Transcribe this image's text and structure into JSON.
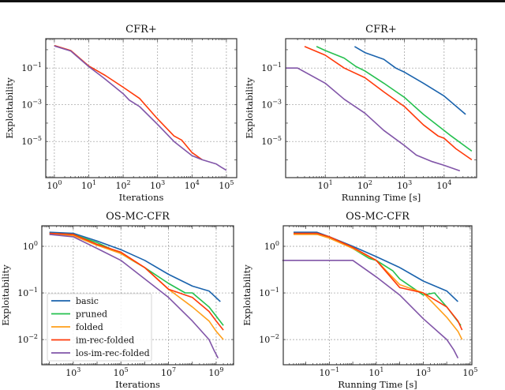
{
  "colors": {
    "basic": "#1a63ad",
    "pruned": "#25c04f",
    "folded": "#ff9f1a",
    "im-rec-folded": "#ff3a0a",
    "los-im-rec-folded": "#8155a8"
  },
  "chart_data": [
    {
      "type": "line",
      "title": "CFR+",
      "xlabel": "Iterations",
      "ylabel": "Exploitability",
      "xscale": "log",
      "yscale": "log",
      "xlim_log10": [
        -0.25,
        5.3
      ],
      "ylim_log10": [
        -6.97,
        0.6
      ],
      "xticks_log10": [
        0,
        1,
        2,
        3,
        4,
        5
      ],
      "yticks_log10": [
        -1,
        -3,
        -5
      ],
      "grid": true,
      "series": [
        {
          "name": "im-rec-folded",
          "x": [
            1,
            3,
            10,
            30,
            100,
            300,
            1000,
            3000,
            5000,
            10000,
            20000
          ],
          "y": [
            1.7,
            0.9,
            0.13,
            0.04,
            0.009,
            0.0022,
            0.00017,
            2e-05,
            1.2e-05,
            2.5e-06,
            1e-06
          ]
        },
        {
          "name": "los-im-rec-folded",
          "x": [
            1,
            3,
            10,
            30,
            100,
            150,
            300,
            1000,
            3000,
            10000,
            20000,
            50000,
            70000,
            100000
          ],
          "y": [
            1.6,
            0.85,
            0.12,
            0.025,
            0.004,
            0.0018,
            0.0008,
            8.5e-05,
            1e-05,
            1.7e-06,
            1e-06,
            6e-07,
            4e-07,
            2.7e-07
          ]
        }
      ]
    },
    {
      "type": "line",
      "title": "CFR+",
      "xlabel": "Running Time [s]",
      "ylabel": "Exploitability",
      "xscale": "log",
      "yscale": "log",
      "xlim_log10": [
        0,
        4.82
      ],
      "ylim_log10": [
        -6.97,
        0.6
      ],
      "xticks_log10": [
        1,
        2,
        3,
        4
      ],
      "yticks_log10": [
        -1,
        -3,
        -5
      ],
      "grid": true,
      "series": [
        {
          "name": "basic",
          "x": [
            55,
            100,
            300,
            600,
            1000,
            3000,
            10000,
            35000
          ],
          "y": [
            1.5,
            0.7,
            0.3,
            0.1,
            0.06,
            0.015,
            0.003,
            0.0003
          ]
        },
        {
          "name": "pruned",
          "x": [
            6,
            10,
            30,
            60,
            100,
            300,
            1000,
            3000,
            10000,
            15000,
            50000
          ],
          "y": [
            1.5,
            0.9,
            0.35,
            0.12,
            0.07,
            0.015,
            0.0025,
            0.0003,
            4e-05,
            2e-05,
            3e-06
          ]
        },
        {
          "name": "im-rec-folded",
          "x": [
            3,
            10,
            30,
            100,
            300,
            1000,
            3000,
            7000,
            10000,
            20000,
            50000
          ],
          "y": [
            1.5,
            0.5,
            0.1,
            0.03,
            0.005,
            0.0008,
            8e-05,
            2e-05,
            1.5e-05,
            4e-06,
            1e-06
          ]
        },
        {
          "name": "los-im-rec-folded",
          "x": [
            1,
            2,
            10,
            30,
            100,
            300,
            1000,
            2000,
            5000,
            10000,
            25000
          ],
          "y": [
            0.1,
            0.1,
            0.015,
            0.002,
            0.00035,
            4e-05,
            6e-06,
            1.8e-06,
            8e-07,
            5e-07,
            2.5e-07
          ]
        }
      ]
    },
    {
      "type": "line",
      "title": "OS-MC-CFR",
      "xlabel": "Iterations",
      "ylabel": "Exploitability",
      "xscale": "log",
      "yscale": "log",
      "xlim_log10": [
        1.68,
        9.73
      ],
      "ylim_log10": [
        -2.54,
        0.44
      ],
      "xticks_log10": [
        3,
        5,
        7,
        9
      ],
      "yticks_log10": [
        0,
        -1,
        -2
      ],
      "grid": true,
      "legend": "lower-left",
      "series": [
        {
          "name": "basic",
          "x": [
            100,
            1000,
            10000,
            100000,
            1000000,
            10000000,
            100000000,
            500000000,
            1500000000
          ],
          "y": [
            2.0,
            1.9,
            1.3,
            0.85,
            0.5,
            0.25,
            0.14,
            0.11,
            0.065
          ]
        },
        {
          "name": "pruned",
          "x": [
            100,
            1000,
            10000,
            100000,
            300000,
            1000000,
            10000000,
            50000000,
            100000000,
            500000000,
            2000000000
          ],
          "y": [
            1.9,
            1.8,
            1.2,
            0.7,
            0.5,
            0.35,
            0.16,
            0.1,
            0.1,
            0.05,
            0.02
          ]
        },
        {
          "name": "folded",
          "x": [
            100,
            1000,
            10000,
            100000,
            1000000,
            10000000,
            100000000,
            500000000,
            1000000000,
            2000000000
          ],
          "y": [
            1.8,
            1.7,
            1.05,
            0.7,
            0.35,
            0.12,
            0.05,
            0.025,
            0.015,
            0.01
          ]
        },
        {
          "name": "im-rec-folded",
          "x": [
            100,
            1000,
            10000,
            100000,
            1000000,
            10000000,
            100000000,
            500000000,
            1000000000,
            2000000000
          ],
          "y": [
            1.9,
            1.8,
            1.1,
            0.75,
            0.35,
            0.12,
            0.08,
            0.04,
            0.025,
            0.016
          ]
        },
        {
          "name": "los-im-rec-folded",
          "x": [
            100,
            1000,
            10000,
            100000,
            1000000,
            10000000,
            100000000,
            500000000,
            800000000,
            1200000000
          ],
          "y": [
            1.8,
            1.6,
            0.9,
            0.5,
            0.2,
            0.08,
            0.025,
            0.01,
            0.006,
            0.004
          ]
        }
      ]
    },
    {
      "type": "line",
      "title": "OS-MC-CFR",
      "xlabel": "Running Time [s]",
      "ylabel": "Exploitability",
      "xscale": "log",
      "yscale": "log",
      "xlim_log10": [
        -2.96,
        5.07
      ],
      "ylim_log10": [
        -2.54,
        0.44
      ],
      "xticks_log10": [
        -1,
        1,
        3,
        5
      ],
      "yticks_log10": [
        0,
        -1,
        -2
      ],
      "grid": true,
      "series": [
        {
          "name": "basic",
          "x": [
            0.003,
            0.03,
            0.1,
            1,
            10,
            100,
            1000,
            10000,
            30000
          ],
          "y": [
            2.0,
            2.0,
            1.6,
            1.0,
            0.6,
            0.35,
            0.18,
            0.11,
            0.065
          ]
        },
        {
          "name": "pruned",
          "x": [
            0.003,
            0.03,
            0.1,
            1,
            5,
            10,
            50,
            100,
            1000,
            3000,
            10000,
            40000
          ],
          "y": [
            1.9,
            1.8,
            1.6,
            0.9,
            0.55,
            0.5,
            0.3,
            0.2,
            0.09,
            0.1,
            0.05,
            0.02
          ]
        },
        {
          "name": "folded",
          "x": [
            0.003,
            0.03,
            0.1,
            1,
            10,
            100,
            1000,
            10000,
            30000,
            45000
          ],
          "y": [
            1.8,
            1.8,
            1.5,
            0.9,
            0.5,
            0.15,
            0.1,
            0.03,
            0.015,
            0.01
          ]
        },
        {
          "name": "im-rec-folded",
          "x": [
            0.003,
            0.03,
            0.1,
            1,
            10,
            100,
            1000,
            10000,
            30000,
            45000
          ],
          "y": [
            1.9,
            1.9,
            1.6,
            0.95,
            0.5,
            0.13,
            0.1,
            0.05,
            0.025,
            0.016
          ]
        },
        {
          "name": "los-im-rec-folded",
          "x": [
            0.001,
            1,
            10,
            100,
            1000,
            10000,
            20000,
            30000
          ],
          "y": [
            0.5,
            0.5,
            0.22,
            0.09,
            0.028,
            0.01,
            0.006,
            0.004
          ]
        }
      ]
    }
  ]
}
